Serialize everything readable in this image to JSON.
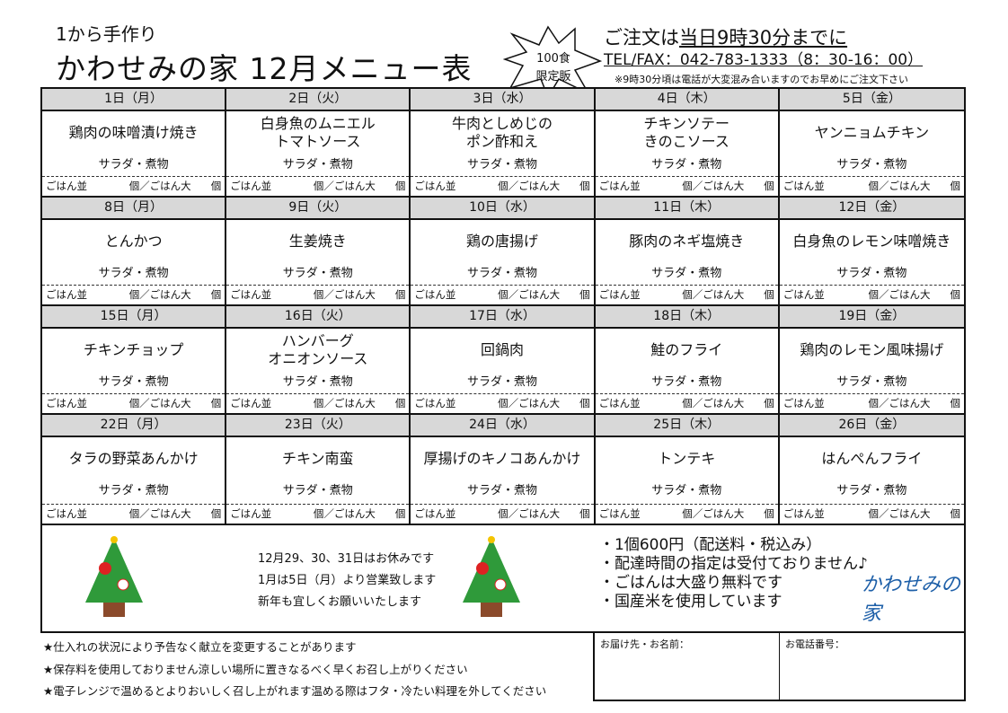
{
  "header": {
    "subtitle": "1から手作り",
    "title": "かわせみの家 12月メニュー表",
    "limited": [
      "100食",
      "限定販"
    ],
    "order_prefix": "ご注文は",
    "order_deadline": "当日9時30分までに",
    "tel": "TEL/FAX：042-783-1333（8：30-16：00）",
    "note": "※9時30分頃は電話が大変混み合いますのでお早めにご注文下さい"
  },
  "order_line": {
    "regular": "ごはん並",
    "unit1": "個／ごはん大",
    "unit2": "個"
  },
  "days": [
    {
      "date": "1日（月）",
      "dish": "鶏肉の味噌漬け焼き",
      "side": "サラダ・煮物"
    },
    {
      "date": "2日（火）",
      "dish": "白身魚のムニエル\nトマトソース",
      "side": "サラダ・煮物"
    },
    {
      "date": "3日（水）",
      "dish": "牛肉としめじの\nポン酢和え",
      "side": "サラダ・煮物"
    },
    {
      "date": "4日（木）",
      "dish": "チキンソテー\nきのこソース",
      "side": "サラダ・煮物"
    },
    {
      "date": "5日（金）",
      "dish": "ヤンニョムチキン",
      "side": "サラダ・煮物"
    },
    {
      "date": "8日（月）",
      "dish": "とんかつ",
      "side": "サラダ・煮物"
    },
    {
      "date": "9日（火）",
      "dish": "生姜焼き",
      "side": "サラダ・煮物"
    },
    {
      "date": "10日（水）",
      "dish": "鶏の唐揚げ",
      "side": "サラダ・煮物"
    },
    {
      "date": "11日（木）",
      "dish": "豚肉のネギ塩焼き",
      "side": "サラダ・煮物"
    },
    {
      "date": "12日（金）",
      "dish": "白身魚のレモン味噌焼き",
      "side": "サラダ・煮物"
    },
    {
      "date": "15日（月）",
      "dish": "チキンチョップ",
      "side": "サラダ・煮物"
    },
    {
      "date": "16日（火）",
      "dish": "ハンバーグ\nオニオンソース",
      "side": "サラダ・煮物"
    },
    {
      "date": "17日（水）",
      "dish": "回鍋肉",
      "side": "サラダ・煮物"
    },
    {
      "date": "18日（木）",
      "dish": "鮭のフライ",
      "side": "サラダ・煮物"
    },
    {
      "date": "19日（金）",
      "dish": "鶏肉のレモン風味揚げ",
      "side": "サラダ・煮物"
    },
    {
      "date": "22日（月）",
      "dish": "タラの野菜あんかけ",
      "side": "サラダ・煮物"
    },
    {
      "date": "23日（火）",
      "dish": "チキン南蛮",
      "side": "サラダ・煮物"
    },
    {
      "date": "24日（水）",
      "dish": "厚揚げのキノコあんかけ",
      "side": "サラダ・煮物"
    },
    {
      "date": "25日（木）",
      "dish": "トンテキ",
      "side": "サラダ・煮物"
    },
    {
      "date": "26日（金）",
      "dish": "はんぺんフライ",
      "side": "サラダ・煮物"
    }
  ],
  "holiday": [
    "12月29、30、31日はお休みです",
    "1月は5日（月）より営業致します",
    "新年も宜しくお願いいたします"
  ],
  "points": [
    "・1個600円（配送料・税込み）",
    "・配達時間の指定は受付ておりません♪",
    "・ごはんは大盛り無料です",
    "・国産米を使用しています"
  ],
  "logo": "かわせみの家",
  "notes": [
    "★仕入れの状況により予告なく献立を変更することがあります",
    "★保存料を使用しておりません涼しい場所に置きなるべく早くお召し上がりください",
    "★電子レンジで温めるとよりおいしく召し上がれます温める際はフタ・冷たい料理を外してください"
  ],
  "form": {
    "name_label": "お届け先・お名前：",
    "phone_label": "お電話番号："
  },
  "colors": {
    "header_bg": "#d8d8d8",
    "logo": "#1d5fa8"
  }
}
